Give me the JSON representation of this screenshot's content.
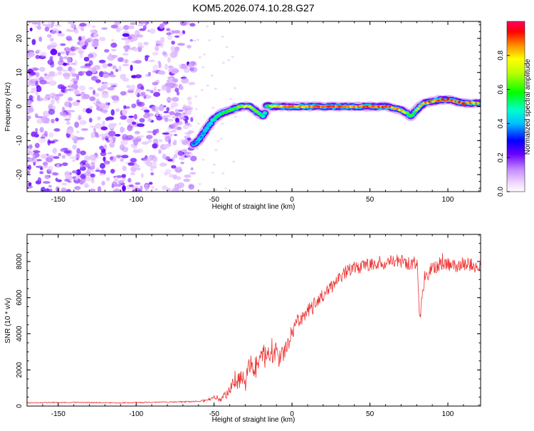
{
  "chart_data": [
    {
      "type": "heatmap",
      "title": "KOM5.2026.074.10.28.G27",
      "xlabel": "Height of straight line (km)",
      "ylabel": "Frequency (Hz)",
      "xlim": [
        -170,
        121
      ],
      "ylim": [
        -25,
        25
      ],
      "x_ticks": [
        -150,
        -100,
        -50,
        0,
        50,
        100
      ],
      "y_ticks": [
        -20,
        -10,
        0,
        10,
        20
      ],
      "noise_region_x": [
        -170,
        -63
      ],
      "signal_trace": {
        "x": [
          -63,
          -60,
          -57,
          -54,
          -51,
          -48,
          -45,
          -42,
          -39,
          -36,
          -33,
          -30,
          -27,
          -24,
          -21,
          -18,
          -16,
          -14,
          -12,
          -8,
          0,
          10,
          20,
          30,
          40,
          50,
          60,
          66,
          70,
          74,
          76,
          78,
          80,
          82,
          85,
          90,
          95,
          100,
          105,
          110,
          115,
          120
        ],
        "y": [
          -11,
          -10,
          -8,
          -6,
          -4,
          -3,
          -2,
          -1.5,
          -1,
          -0.5,
          0,
          0,
          0,
          -1,
          -2,
          -3,
          0.5,
          0,
          0,
          0,
          0,
          0,
          0,
          0,
          0,
          0,
          0,
          -0.5,
          -1,
          -2,
          -3,
          -2,
          -1,
          0,
          1,
          1.5,
          2,
          2,
          1.5,
          1,
          1,
          1
        ],
        "amplitude": [
          0.35,
          0.4,
          0.4,
          0.45,
          0.5,
          0.55,
          0.55,
          0.6,
          0.6,
          0.65,
          0.7,
          0.75,
          0.75,
          0.7,
          0.6,
          0.5,
          0.6,
          0.7,
          0.8,
          0.85,
          0.9,
          0.85,
          0.9,
          0.9,
          0.85,
          0.9,
          0.9,
          0.85,
          0.8,
          0.7,
          0.6,
          0.6,
          0.7,
          0.8,
          0.85,
          0.9,
          0.9,
          0.9,
          0.9,
          0.9,
          0.9,
          0.85
        ]
      },
      "colorbar": {
        "label": "Normalized spectral amplitude",
        "range": [
          0,
          1
        ],
        "ticks": [
          "0.0",
          "0.2",
          "0.4",
          "0.6",
          "0.8"
        ],
        "tick_values": [
          0,
          0.2,
          0.4,
          0.6,
          0.8
        ]
      }
    },
    {
      "type": "line",
      "xlabel": "Height of straight line (km)",
      "ylabel": "SNR (10 * v/v)",
      "xlim": [
        -170,
        121
      ],
      "ylim": [
        0,
        9500
      ],
      "x_ticks": [
        -150,
        -100,
        -50,
        0,
        50,
        100
      ],
      "y_ticks": [
        0,
        2000,
        4000,
        6000,
        8000
      ],
      "series": [
        {
          "name": "SNR",
          "color": "#ee3333",
          "x": [
            -170,
            -140,
            -110,
            -80,
            -60,
            -52,
            -50,
            -48,
            -45,
            -42,
            -40,
            -38,
            -35,
            -32,
            -30,
            -28,
            -25,
            -22,
            -20,
            -18,
            -15,
            -13,
            -12,
            -10,
            -8,
            -5,
            -3,
            0,
            5,
            10,
            15,
            20,
            25,
            30,
            35,
            40,
            45,
            50,
            55,
            60,
            65,
            70,
            75,
            78,
            80,
            82,
            85,
            90,
            95,
            100,
            105,
            110,
            115,
            120
          ],
          "y": [
            180,
            200,
            180,
            220,
            250,
            400,
            550,
            450,
            350,
            700,
            900,
            1200,
            1400,
            1600,
            1300,
            2000,
            2300,
            2100,
            2600,
            2700,
            2900,
            3200,
            3600,
            2900,
            2600,
            3000,
            3300,
            4200,
            4800,
            5200,
            5600,
            6200,
            6600,
            7000,
            7400,
            7600,
            7700,
            7800,
            7900,
            7900,
            8000,
            8000,
            7900,
            7800,
            8200,
            4700,
            7200,
            7600,
            7900,
            7800,
            7700,
            7900,
            7800,
            7700
          ],
          "noise_amplitude": [
            30,
            30,
            30,
            30,
            40,
            80,
            100,
            150,
            200,
            300,
            400,
            450,
            500,
            550,
            600,
            600,
            650,
            600,
            700,
            700,
            650,
            900,
            1200,
            600,
            500,
            500,
            500,
            500,
            450,
            450,
            450,
            450,
            400,
            400,
            400,
            400,
            380,
            380,
            380,
            380,
            380,
            380,
            380,
            400,
            500,
            300,
            400,
            400,
            400,
            400,
            380,
            380,
            380,
            380
          ]
        }
      ]
    }
  ]
}
